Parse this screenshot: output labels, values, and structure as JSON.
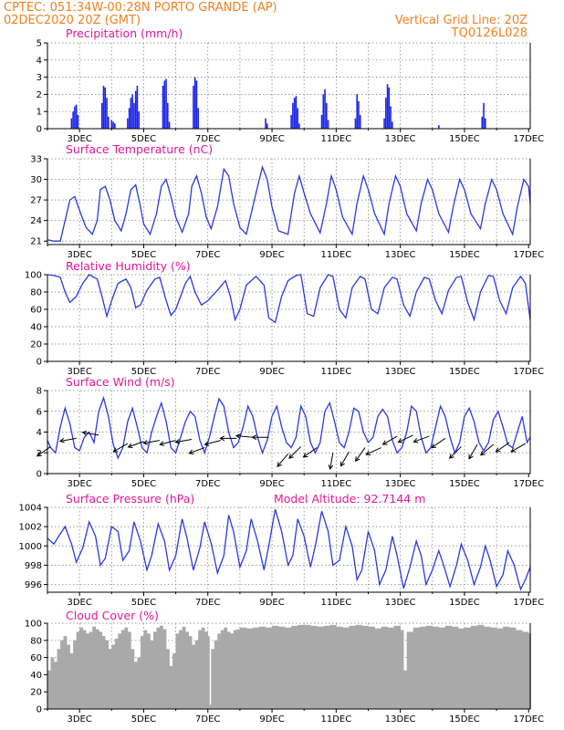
{
  "header": {
    "left1": "CPTEC:  051:34W-00:28N  PORTO GRANDE (AP)",
    "left2": "02DEC2020 20Z (GMT)",
    "right1": "Vertical Grid Line: 20Z",
    "right2": "TQ0126L028"
  },
  "colors": {
    "header": "#f08020",
    "title": "#e0179a",
    "series": "#2b39e0",
    "bars": "#1a22e8",
    "cloud": "#a9a9a9"
  },
  "x_labels": [
    "3DEC",
    "5DEC",
    "7DEC",
    "9DEC",
    "11DEC",
    "13DEC",
    "15DEC",
    "17DEC"
  ],
  "chart_data": [
    {
      "type": "bar",
      "title": "Precipitation (mm/h)",
      "ylim": [
        0,
        5
      ],
      "yticks": [
        0,
        1,
        2,
        3,
        4,
        5
      ],
      "x": [
        2.75,
        2.8,
        2.85,
        2.9,
        2.95,
        3.7,
        3.75,
        3.8,
        3.85,
        3.9,
        4.0,
        4.05,
        4.1,
        4.5,
        4.55,
        4.6,
        4.65,
        4.7,
        4.75,
        4.8,
        4.85,
        5.6,
        5.65,
        5.7,
        5.75,
        5.8,
        6.55,
        6.6,
        6.65,
        6.7,
        8.8,
        8.85,
        9.6,
        9.65,
        9.7,
        9.75,
        9.8,
        9.85,
        10.55,
        10.6,
        10.65,
        10.7,
        10.75,
        11.6,
        11.65,
        11.7,
        11.75,
        12.5,
        12.55,
        12.6,
        12.65,
        12.7,
        12.75,
        14.2,
        15.55,
        15.6,
        15.65
      ],
      "values": [
        0.6,
        1.0,
        1.3,
        1.4,
        0.8,
        1.5,
        2.5,
        2.4,
        1.8,
        0.7,
        0.5,
        0.4,
        0.3,
        0.6,
        1.2,
        1.8,
        2.0,
        1.5,
        2.2,
        2.5,
        1.0,
        2.5,
        2.8,
        2.9,
        1.5,
        0.4,
        2.5,
        3.0,
        2.8,
        1.2,
        0.6,
        0.3,
        0.8,
        1.5,
        1.8,
        1.9,
        1.2,
        0.3,
        0.8,
        2.0,
        2.3,
        1.5,
        0.5,
        0.6,
        2.0,
        1.6,
        0.8,
        0.6,
        1.8,
        2.6,
        2.4,
        1.3,
        0.4,
        0.2,
        0.7,
        1.5,
        0.6
      ]
    },
    {
      "type": "line",
      "title": "Surface Temperature (nC)",
      "ylim": [
        20.5,
        33
      ],
      "yticks": [
        21,
        24,
        27,
        30,
        33
      ],
      "x": [
        2.0,
        2.2,
        2.4,
        2.55,
        2.7,
        2.85,
        3.0,
        3.2,
        3.4,
        3.55,
        3.65,
        3.8,
        3.95,
        4.1,
        4.3,
        4.45,
        4.6,
        4.75,
        4.9,
        5.0,
        5.2,
        5.4,
        5.55,
        5.7,
        5.85,
        6.0,
        6.2,
        6.4,
        6.5,
        6.65,
        6.8,
        6.95,
        7.1,
        7.3,
        7.5,
        7.65,
        7.8,
        8.0,
        8.2,
        8.5,
        8.7,
        8.85,
        9.0,
        9.2,
        9.5,
        9.7,
        9.85,
        10.0,
        10.2,
        10.5,
        10.7,
        10.85,
        11.0,
        11.2,
        11.5,
        11.65,
        11.85,
        12.0,
        12.2,
        12.5,
        12.65,
        12.85,
        13.0,
        13.2,
        13.5,
        13.65,
        13.85,
        14.0,
        14.2,
        14.5,
        14.65,
        14.85,
        15.0,
        15.2,
        15.5,
        15.65,
        15.85,
        16.0,
        16.2,
        16.5,
        16.65,
        16.85,
        17.0,
        17.05
      ],
      "values": [
        21.2,
        21.0,
        21.0,
        24.0,
        27.0,
        27.5,
        25.5,
        23.0,
        22.0,
        24.0,
        28.5,
        29.0,
        27.0,
        24.0,
        22.5,
        25.0,
        28.5,
        29.2,
        26.0,
        23.5,
        22.0,
        25.0,
        29.0,
        30.0,
        27.5,
        24.5,
        22.3,
        25.0,
        29.0,
        30.5,
        28.0,
        24.5,
        22.8,
        26.0,
        31.5,
        30.5,
        26.5,
        23.0,
        22.0,
        28.0,
        31.8,
        30.0,
        26.0,
        22.5,
        22.0,
        28.0,
        30.5,
        28.0,
        25.0,
        22.2,
        26.5,
        30.5,
        28.5,
        24.5,
        22.0,
        26.5,
        30.5,
        28.5,
        25.0,
        22.0,
        26.5,
        30.5,
        29.0,
        25.0,
        22.5,
        26.5,
        30.0,
        28.5,
        25.0,
        22.3,
        26.0,
        30.0,
        28.5,
        25.0,
        22.8,
        26.5,
        30.0,
        28.5,
        25.0,
        22.0,
        26.0,
        30.0,
        29.0,
        26.5
      ]
    },
    {
      "type": "line",
      "title": "Relative Humidity (%)",
      "ylim": [
        0,
        100
      ],
      "yticks": [
        0,
        20,
        40,
        60,
        80,
        100
      ],
      "x": [
        2.0,
        2.2,
        2.4,
        2.55,
        2.7,
        2.9,
        3.1,
        3.3,
        3.55,
        3.7,
        3.85,
        4.0,
        4.2,
        4.45,
        4.6,
        4.75,
        4.9,
        5.1,
        5.35,
        5.5,
        5.7,
        5.85,
        6.0,
        6.3,
        6.45,
        6.6,
        6.8,
        7.0,
        7.3,
        7.55,
        7.7,
        7.85,
        8.0,
        8.2,
        8.5,
        8.75,
        8.9,
        9.1,
        9.3,
        9.5,
        9.75,
        9.9,
        10.1,
        10.3,
        10.5,
        10.75,
        10.9,
        11.1,
        11.3,
        11.5,
        11.75,
        11.9,
        12.1,
        12.3,
        12.5,
        12.75,
        12.9,
        13.1,
        13.3,
        13.5,
        13.75,
        13.9,
        14.1,
        14.3,
        14.5,
        14.75,
        14.9,
        15.1,
        15.3,
        15.5,
        15.75,
        15.9,
        16.1,
        16.3,
        16.5,
        16.75,
        16.9,
        17.05
      ],
      "values": [
        100,
        99,
        97,
        80,
        68,
        75,
        90,
        100,
        95,
        75,
        52,
        70,
        90,
        95,
        85,
        62,
        65,
        82,
        95,
        97,
        70,
        53,
        60,
        90,
        98,
        80,
        65,
        70,
        82,
        93,
        75,
        48,
        60,
        88,
        98,
        88,
        50,
        45,
        75,
        93,
        99,
        100,
        55,
        52,
        85,
        100,
        98,
        60,
        50,
        85,
        98,
        95,
        60,
        55,
        85,
        97,
        95,
        65,
        52,
        80,
        97,
        95,
        70,
        55,
        82,
        97,
        98,
        68,
        48,
        80,
        99,
        98,
        70,
        55,
        85,
        98,
        90,
        48
      ]
    },
    {
      "type": "line",
      "title": "Surface Wind (m/s)",
      "ylim": [
        0,
        8
      ],
      "yticks": [
        0,
        2,
        4,
        6,
        8
      ],
      "x": [
        2.0,
        2.1,
        2.25,
        2.4,
        2.55,
        2.7,
        2.85,
        3.0,
        3.15,
        3.3,
        3.45,
        3.6,
        3.75,
        3.9,
        4.05,
        4.2,
        4.35,
        4.5,
        4.65,
        4.8,
        4.95,
        5.1,
        5.25,
        5.4,
        5.55,
        5.7,
        5.85,
        6.0,
        6.15,
        6.3,
        6.45,
        6.6,
        6.75,
        6.9,
        7.05,
        7.2,
        7.35,
        7.5,
        7.65,
        7.8,
        7.95,
        8.1,
        8.25,
        8.4,
        8.55,
        8.7,
        8.85,
        9.0,
        9.15,
        9.3,
        9.45,
        9.6,
        9.75,
        9.9,
        10.05,
        10.2,
        10.35,
        10.5,
        10.65,
        10.8,
        10.95,
        11.1,
        11.25,
        11.4,
        11.55,
        11.7,
        11.85,
        12.0,
        12.15,
        12.3,
        12.45,
        12.6,
        12.75,
        12.9,
        13.05,
        13.2,
        13.35,
        13.5,
        13.65,
        13.8,
        13.95,
        14.1,
        14.25,
        14.4,
        14.55,
        14.7,
        14.85,
        15.0,
        15.15,
        15.3,
        15.45,
        15.6,
        15.75,
        15.9,
        16.05,
        16.2,
        16.35,
        16.5,
        16.65,
        16.8,
        16.95,
        17.05
      ],
      "values": [
        3.2,
        2.5,
        2.0,
        4.5,
        6.3,
        4.8,
        2.5,
        2.2,
        3.5,
        4.0,
        3.0,
        6.0,
        7.3,
        5.5,
        2.8,
        1.5,
        2.5,
        5.0,
        6.3,
        4.5,
        2.5,
        2.0,
        4.0,
        5.5,
        6.8,
        5.0,
        2.5,
        2.0,
        3.5,
        5.0,
        6.0,
        5.5,
        3.2,
        2.0,
        3.5,
        5.5,
        7.2,
        6.5,
        4.0,
        2.5,
        3.0,
        4.5,
        6.5,
        5.5,
        3.5,
        2.0,
        3.2,
        5.5,
        6.5,
        4.5,
        3.0,
        2.5,
        3.5,
        6.5,
        5.5,
        3.0,
        2.0,
        3.0,
        6.0,
        6.8,
        5.0,
        3.0,
        2.5,
        4.0,
        6.3,
        6.0,
        4.0,
        3.0,
        3.5,
        5.5,
        6.2,
        5.5,
        3.2,
        2.0,
        2.5,
        4.0,
        6.5,
        6.0,
        3.5,
        2.0,
        2.5,
        4.5,
        6.5,
        5.5,
        3.5,
        2.0,
        3.0,
        5.5,
        6.3,
        5.0,
        3.0,
        2.2,
        3.0,
        5.2,
        6.0,
        4.5,
        2.8,
        2.5,
        4.0,
        5.5,
        3.0,
        3.5
      ],
      "arrows_x": [
        2.1,
        2.9,
        3.6,
        4.5,
        5.0,
        5.5,
        6.0,
        6.5,
        6.9,
        7.4,
        7.9,
        8.4,
        8.9,
        9.5,
        9.9,
        10.4,
        10.9,
        11.4,
        11.9,
        12.4,
        12.9,
        13.4,
        13.9,
        14.4,
        14.9,
        15.4,
        15.9,
        16.4,
        16.9
      ],
      "arrows_y": [
        2.6,
        3.4,
        3.7,
        2.9,
        3.1,
        3.2,
        3.2,
        3.3,
        2.5,
        3.2,
        3.4,
        3.5,
        3.5,
        1.9,
        2.6,
        2.5,
        2.0,
        2.1,
        2.5,
        2.5,
        3.6,
        3.7,
        3.6,
        3.4,
        2.6,
        2.8,
        2.8,
        3.0,
        2.9
      ],
      "arrows_dir": [
        215,
        190,
        170,
        210,
        200,
        190,
        195,
        190,
        200,
        195,
        180,
        175,
        180,
        230,
        225,
        215,
        260,
        240,
        235,
        205,
        210,
        205,
        200,
        215,
        225,
        240,
        220,
        215,
        210
      ]
    },
    {
      "type": "line",
      "title": "Surface Pressure (hPa)",
      "annotation": "Model Altitude: 92.7144 m",
      "ylim": [
        995.2,
        1004
      ],
      "yticks": [
        996,
        998,
        1000,
        1002,
        1004
      ],
      "x": [
        2.0,
        2.2,
        2.35,
        2.55,
        2.75,
        2.9,
        3.1,
        3.3,
        3.5,
        3.65,
        3.8,
        4.0,
        4.2,
        4.35,
        4.55,
        4.7,
        4.9,
        5.1,
        5.25,
        5.45,
        5.65,
        5.8,
        6.0,
        6.2,
        6.35,
        6.55,
        6.75,
        6.9,
        7.1,
        7.3,
        7.5,
        7.65,
        7.8,
        8.0,
        8.2,
        8.35,
        8.55,
        8.75,
        8.9,
        9.1,
        9.3,
        9.5,
        9.65,
        9.8,
        10.0,
        10.2,
        10.35,
        10.55,
        10.75,
        10.9,
        11.1,
        11.3,
        11.5,
        11.65,
        11.8,
        12.0,
        12.2,
        12.35,
        12.55,
        12.75,
        12.9,
        13.1,
        13.3,
        13.5,
        13.65,
        13.8,
        14.0,
        14.2,
        14.35,
        14.55,
        14.75,
        14.9,
        15.1,
        15.3,
        15.5,
        15.65,
        15.8,
        16.0,
        16.2,
        16.35,
        16.55,
        16.75,
        16.9,
        17.05
      ],
      "values": [
        1000.8,
        1000.2,
        1001.0,
        1002.0,
        1000.2,
        998.3,
        999.8,
        1002.5,
        1001.0,
        998.0,
        998.7,
        1002.0,
        1001.5,
        998.5,
        999.5,
        1002.5,
        1000.5,
        997.5,
        999.0,
        1002.3,
        1000.5,
        997.5,
        999.0,
        1002.8,
        1000.8,
        997.5,
        999.8,
        1002.5,
        1000.3,
        997.2,
        999.0,
        1003.2,
        1001.5,
        997.8,
        999.5,
        1002.8,
        1000.5,
        997.5,
        1000.0,
        1003.8,
        1001.5,
        998.0,
        999.0,
        1002.8,
        1001.0,
        997.8,
        1000.0,
        1003.6,
        1001.5,
        998.0,
        998.5,
        1002.0,
        1000.0,
        996.5,
        997.5,
        1001.5,
        999.5,
        996.0,
        997.5,
        1001.0,
        999.0,
        995.6,
        997.8,
        1000.5,
        999.0,
        996.0,
        997.5,
        999.5,
        998.0,
        995.8,
        998.0,
        1000.2,
        998.5,
        996.0,
        997.8,
        1000.0,
        998.5,
        995.8,
        997.0,
        999.5,
        998.0,
        995.5,
        996.5,
        997.8
      ]
    },
    {
      "type": "area",
      "title": "Cloud Cover (%)",
      "ylim": [
        0,
        100
      ],
      "yticks": [
        0,
        20,
        40,
        60,
        80,
        100
      ],
      "x": [
        2.0,
        2.1,
        2.2,
        2.3,
        2.4,
        2.5,
        2.6,
        2.7,
        2.8,
        2.9,
        3.0,
        3.1,
        3.2,
        3.3,
        3.4,
        3.5,
        3.6,
        3.7,
        3.8,
        3.9,
        4.0,
        4.1,
        4.2,
        4.3,
        4.4,
        4.5,
        4.6,
        4.7,
        4.8,
        4.9,
        5.0,
        5.1,
        5.2,
        5.3,
        5.4,
        5.5,
        5.6,
        5.7,
        5.8,
        5.9,
        6.0,
        6.1,
        6.2,
        6.3,
        6.4,
        6.5,
        6.6,
        6.7,
        6.8,
        6.9,
        7.0,
        7.05,
        7.1,
        7.2,
        7.3,
        7.4,
        7.5,
        7.6,
        7.7,
        7.8,
        7.9,
        8.0,
        8.2,
        8.4,
        8.6,
        8.8,
        9.0,
        9.2,
        9.4,
        9.6,
        9.8,
        10.0,
        10.2,
        10.4,
        10.6,
        10.8,
        11.0,
        11.2,
        11.4,
        11.6,
        11.8,
        12.0,
        12.2,
        12.4,
        12.6,
        12.8,
        13.0,
        13.1,
        13.2,
        13.4,
        13.6,
        13.8,
        14.0,
        14.2,
        14.4,
        14.6,
        14.8,
        15.0,
        15.2,
        15.4,
        15.6,
        15.8,
        16.0,
        16.2,
        16.4,
        16.6,
        16.8,
        17.0,
        17.05
      ],
      "values": [
        45,
        60,
        55,
        70,
        80,
        85,
        75,
        65,
        80,
        90,
        95,
        92,
        88,
        90,
        96,
        93,
        90,
        85,
        80,
        70,
        75,
        82,
        88,
        92,
        95,
        90,
        70,
        55,
        60,
        85,
        92,
        88,
        80,
        90,
        95,
        97,
        93,
        70,
        50,
        65,
        88,
        92,
        96,
        90,
        85,
        75,
        80,
        92,
        95,
        90,
        85,
        5,
        70,
        80,
        88,
        92,
        95,
        90,
        88,
        92,
        93,
        95,
        94,
        95,
        96,
        95,
        97,
        96,
        95,
        97,
        98,
        98,
        97,
        96,
        97,
        98,
        96,
        95,
        97,
        98,
        97,
        96,
        94,
        96,
        95,
        97,
        92,
        45,
        90,
        95,
        96,
        97,
        96,
        95,
        97,
        96,
        94,
        95,
        97,
        98,
        96,
        95,
        94,
        96,
        95,
        92,
        90,
        88,
        88
      ]
    }
  ]
}
